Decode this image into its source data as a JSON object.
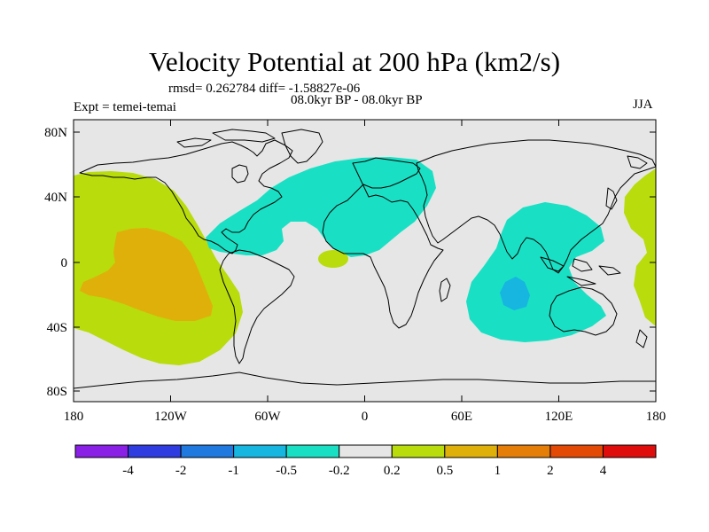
{
  "figure": {
    "title": "Velocity Potential at 200 hPa (km2/s)",
    "stats": "rmsd= 0.262784 diff= -1.58827e-06",
    "period": "08.0kyr BP - 08.0kyr BP",
    "experiment": "Expt = temei-temai",
    "season": "JJA"
  },
  "axes": {
    "y_ticks": [
      "80N",
      "40N",
      "0",
      "40S",
      "80S"
    ],
    "x_ticks": [
      "180",
      "120W",
      "60W",
      "0",
      "60E",
      "120E",
      "180"
    ]
  },
  "colors": {
    "ocean_background": "#e6e6e6",
    "coastline": "#000000"
  },
  "colorbar": {
    "colors": [
      "#8a1fe6",
      "#2f3de0",
      "#1f79de",
      "#16b6e0",
      "#19e0c4",
      "#e6e6e6",
      "#b8dc0c",
      "#e0b00a",
      "#e47e08",
      "#e24a06",
      "#e00d0d"
    ],
    "labels": [
      "-4",
      "-2",
      "-1",
      "-0.5",
      "-0.2",
      "0.2",
      "0.5",
      "1",
      "2",
      "4"
    ]
  }
}
